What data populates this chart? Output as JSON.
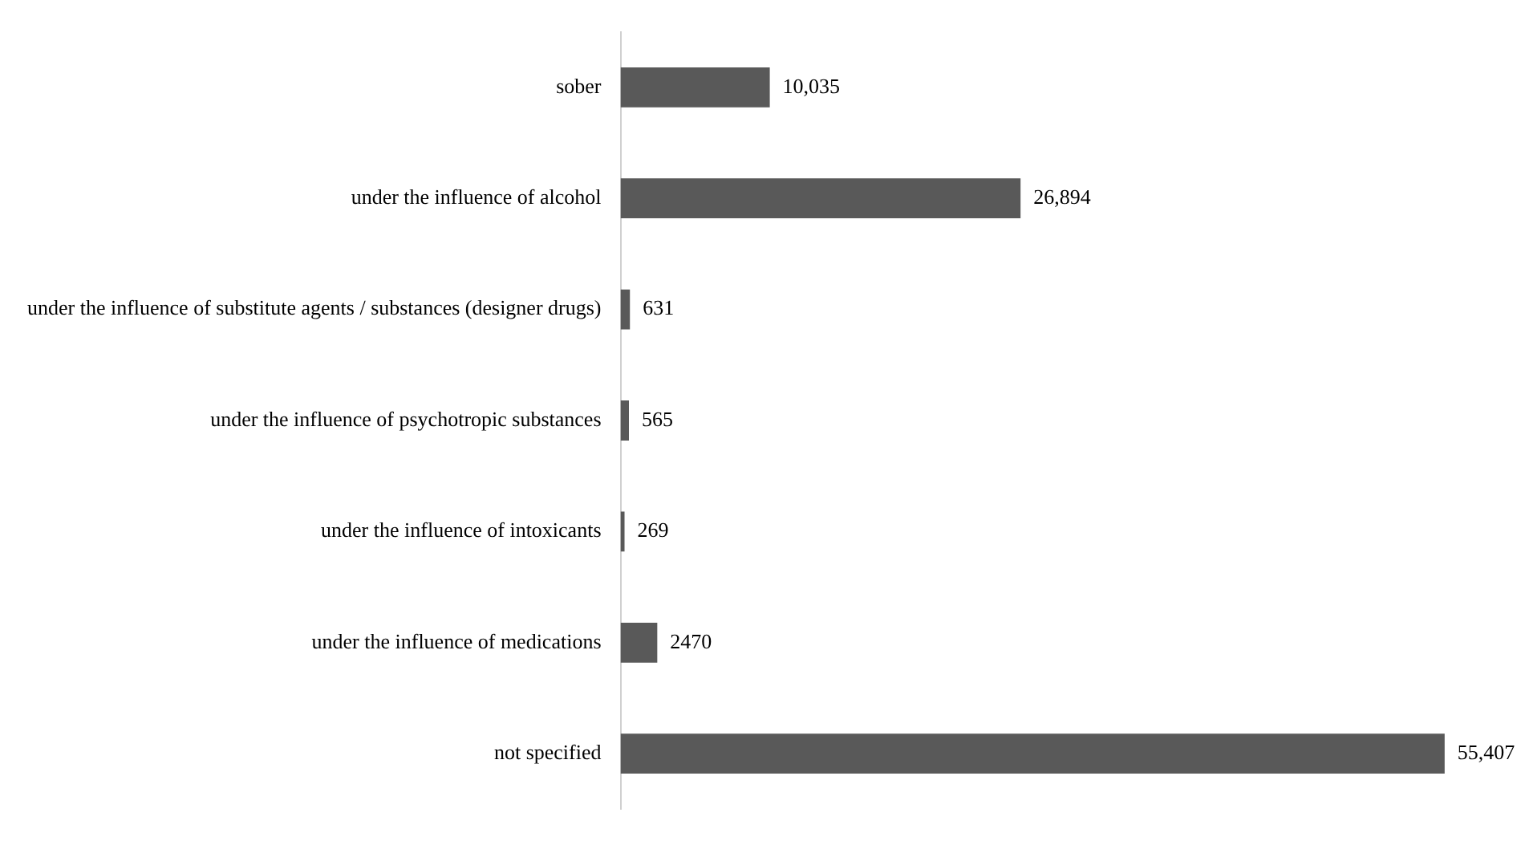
{
  "chart_data": {
    "type": "bar",
    "orientation": "horizontal",
    "categories": [
      "sober",
      "under the influence of alcohol",
      "under the influence of substitute agents / substances (designer drugs)",
      "under the influence of psychotropic substances",
      "under the influence of intoxicants",
      "under the influence of medications",
      "not specified"
    ],
    "values": [
      10035,
      26894,
      631,
      565,
      269,
      2470,
      55407
    ],
    "value_labels": [
      "10,035",
      "26,894",
      "631",
      "565",
      "269",
      "2470",
      "55,407"
    ],
    "color": "#595959",
    "tick_labels": "y"
  }
}
